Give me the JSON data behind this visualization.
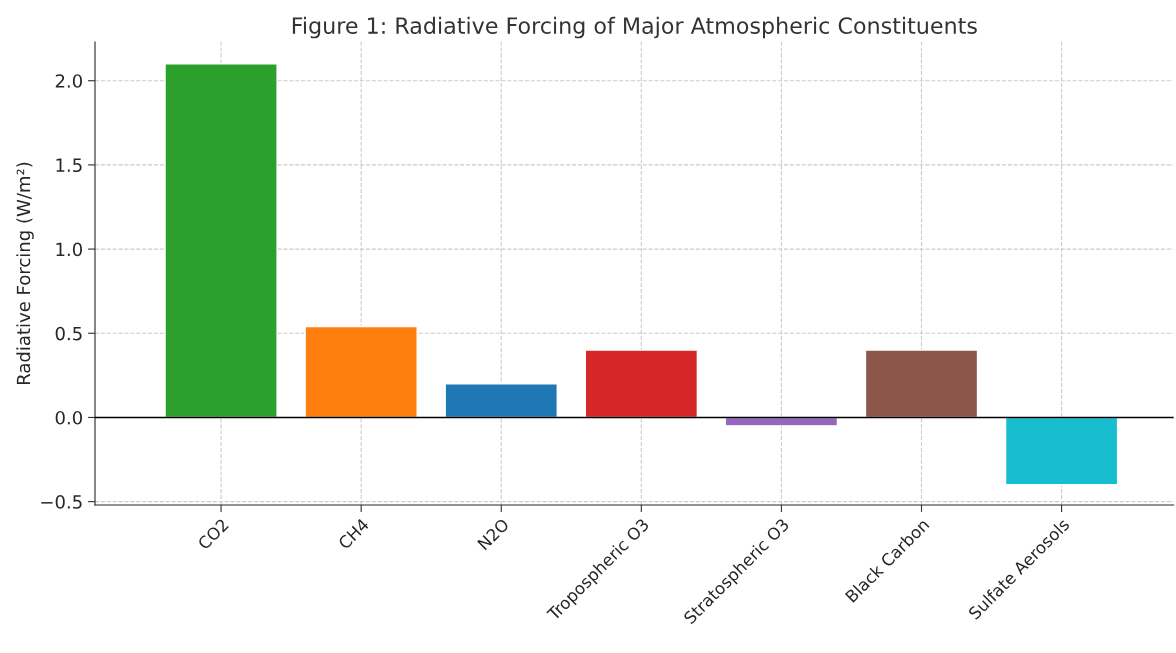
{
  "chart_data": {
    "type": "bar",
    "title": "Figure 1: Radiative Forcing of Major Atmospheric Constituents",
    "ylabel": "Radiative Forcing (W/m²)",
    "categories": [
      "CO2",
      "CH4",
      "N2O",
      "Tropospheric O3",
      "Stratospheric O3",
      "Black Carbon",
      "Sulfate Aerosols"
    ],
    "values": [
      2.1,
      0.54,
      0.2,
      0.4,
      -0.05,
      0.4,
      -0.4
    ],
    "colors": [
      "#2ca02c",
      "#ff7f0e",
      "#1f77b4",
      "#d62728",
      "#9467bd",
      "#8c564b",
      "#17becf"
    ],
    "ylim": [
      -0.52,
      2.23
    ],
    "yticks": [
      {
        "value": -0.5,
        "label": "−0.5"
      },
      {
        "value": 0,
        "label": "0.0"
      },
      {
        "value": 0.5,
        "label": "0.5"
      },
      {
        "value": 1,
        "label": "1.0"
      },
      {
        "value": 1.5,
        "label": "1.5"
      },
      {
        "value": 2,
        "label": "2.0"
      }
    ],
    "grid": true,
    "ref_lines": [
      {
        "axis": "y",
        "value": 0,
        "color": "#000000",
        "line_style": "solid"
      }
    ]
  }
}
